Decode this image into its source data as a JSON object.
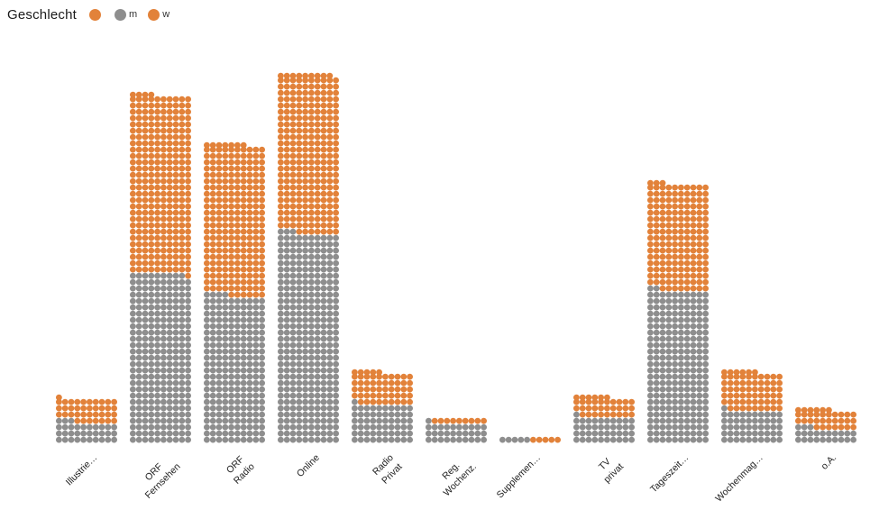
{
  "legend": {
    "title": "Geschlecht",
    "items": [
      {
        "label": "",
        "color": "#E2823A"
      },
      {
        "label": "m",
        "color": "#8E8E8E"
      },
      {
        "label": "w",
        "color": "#E2823A"
      }
    ]
  },
  "chart_data": {
    "type": "pictogram-stacked-bar",
    "description": "Unit dot chart: each dot = 1 unit, 10 dots per row; gray segment (m) stacked at bottom, orange segment (w) on top; partial top row left-aligned and slightly raised",
    "title": "",
    "xlabel": "",
    "ylabel": "",
    "grid": false,
    "legend_position": "top-left",
    "columns_per_bar": 10,
    "categories": [
      "Illustrie…",
      "ORF\nFernsehen",
      "ORF\nRadio",
      "Online",
      "Radio\nPrivat",
      "Reg.\nWochenz.",
      "Supplemen…",
      "TV\nprivat",
      "Tageszeit…",
      "Wochenmag…",
      "o.A."
    ],
    "series": [
      {
        "name": "m",
        "color": "#8E8E8E",
        "values": [
          33,
          269,
          234,
          333,
          61,
          31,
          5,
          41,
          242,
          51,
          23
        ]
      },
      {
        "name": "w",
        "color": "#E2823A",
        "values": [
          38,
          285,
          243,
          256,
          54,
          9,
          5,
          35,
          171,
          65,
          33
        ]
      }
    ],
    "totals": [
      71,
      554,
      477,
      589,
      115,
      40,
      10,
      76,
      413,
      116,
      56
    ]
  }
}
